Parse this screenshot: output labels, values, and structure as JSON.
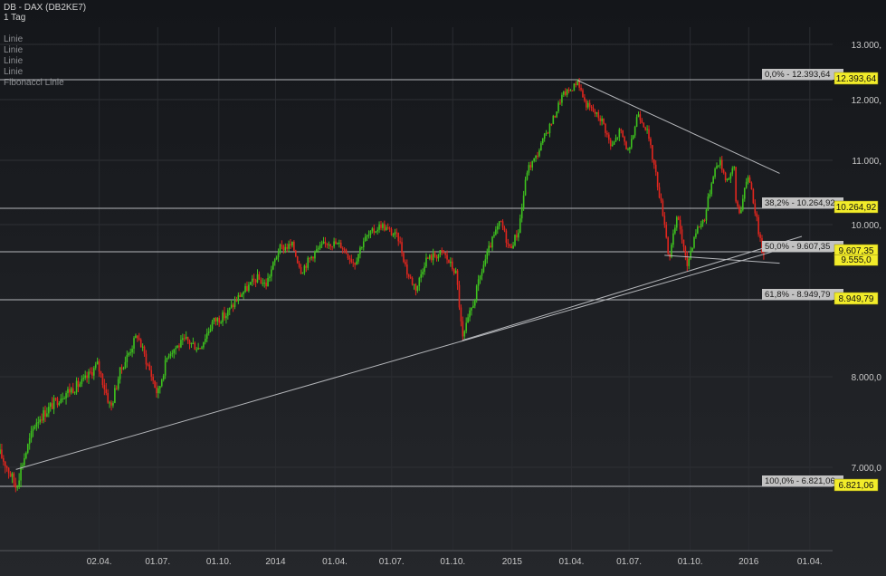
{
  "header": {
    "title": "DB - DAX (DB2KE7)",
    "period": "1 Tag"
  },
  "legend": [
    "Linie",
    "Linie",
    "Linie",
    "Linie",
    "Fibonacci Linie"
  ],
  "colors": {
    "up": "#3ec21e",
    "down": "#e0261e",
    "line": "#b4b6ba",
    "badge": "#f2ec2a",
    "fib_label_bg": "#c2c2c2"
  },
  "chart_data": {
    "type": "candlestick",
    "y_ticks": [
      {
        "value": 13000,
        "label": "13.000,"
      },
      {
        "value": 12000,
        "label": "12.000,"
      },
      {
        "value": 11000,
        "label": "11.000,"
      },
      {
        "value": 10000,
        "label": "10.000,"
      },
      {
        "value": 8000,
        "label": "8.000,0"
      },
      {
        "value": 7000,
        "label": "7.000,0"
      }
    ],
    "x_ticks": [
      {
        "t": 0.112,
        "label": "02.04."
      },
      {
        "t": 0.178,
        "label": "01.07."
      },
      {
        "t": 0.247,
        "label": "01.10."
      },
      {
        "t": 0.311,
        "label": "2014"
      },
      {
        "t": 0.378,
        "label": "01.04."
      },
      {
        "t": 0.442,
        "label": "01.07."
      },
      {
        "t": 0.511,
        "label": "01.10."
      },
      {
        "t": 0.578,
        "label": "2015"
      },
      {
        "t": 0.645,
        "label": "01.04."
      },
      {
        "t": 0.71,
        "label": "01.07."
      },
      {
        "t": 0.779,
        "label": "01.10."
      },
      {
        "t": 0.845,
        "label": "2016"
      },
      {
        "t": 0.914,
        "label": "01.04."
      }
    ],
    "price_path": [
      [
        0.0,
        7150
      ],
      [
        0.018,
        6820
      ],
      [
        0.04,
        7500
      ],
      [
        0.07,
        7800
      ],
      [
        0.095,
        7950
      ],
      [
        0.11,
        8150
      ],
      [
        0.125,
        7650
      ],
      [
        0.135,
        8050
      ],
      [
        0.155,
        8520
      ],
      [
        0.165,
        8200
      ],
      [
        0.178,
        7800
      ],
      [
        0.19,
        8300
      ],
      [
        0.21,
        8450
      ],
      [
        0.225,
        8350
      ],
      [
        0.24,
        8680
      ],
      [
        0.255,
        8760
      ],
      [
        0.27,
        9000
      ],
      [
        0.29,
        9250
      ],
      [
        0.3,
        9150
      ],
      [
        0.315,
        9650
      ],
      [
        0.33,
        9700
      ],
      [
        0.34,
        9350
      ],
      [
        0.355,
        9600
      ],
      [
        0.37,
        9750
      ],
      [
        0.385,
        9700
      ],
      [
        0.4,
        9450
      ],
      [
        0.41,
        9770
      ],
      [
        0.43,
        10000
      ],
      [
        0.45,
        9800
      ],
      [
        0.46,
        9300
      ],
      [
        0.47,
        9100
      ],
      [
        0.48,
        9500
      ],
      [
        0.5,
        9600
      ],
      [
        0.515,
        9300
      ],
      [
        0.522,
        8450
      ],
      [
        0.535,
        8950
      ],
      [
        0.545,
        9400
      ],
      [
        0.555,
        9750
      ],
      [
        0.565,
        10050
      ],
      [
        0.575,
        9650
      ],
      [
        0.585,
        9900
      ],
      [
        0.595,
        10850
      ],
      [
        0.605,
        11050
      ],
      [
        0.615,
        11400
      ],
      [
        0.625,
        11700
      ],
      [
        0.635,
        12100
      ],
      [
        0.645,
        12200
      ],
      [
        0.652,
        12380
      ],
      [
        0.66,
        11950
      ],
      [
        0.67,
        11800
      ],
      [
        0.68,
        11650
      ],
      [
        0.69,
        11200
      ],
      [
        0.7,
        11500
      ],
      [
        0.71,
        11100
      ],
      [
        0.72,
        11800
      ],
      [
        0.73,
        11500
      ],
      [
        0.74,
        10800
      ],
      [
        0.75,
        10050
      ],
      [
        0.755,
        9500
      ],
      [
        0.765,
        10150
      ],
      [
        0.775,
        9400
      ],
      [
        0.785,
        9900
      ],
      [
        0.795,
        10100
      ],
      [
        0.805,
        10800
      ],
      [
        0.812,
        11000
      ],
      [
        0.82,
        10700
      ],
      [
        0.83,
        10900
      ],
      [
        0.82,
        10800
      ],
      [
        0.835,
        10200
      ],
      [
        0.845,
        10800
      ],
      [
        0.852,
        10250
      ],
      [
        0.858,
        9750
      ],
      [
        0.862,
        9550
      ]
    ],
    "trendlines": [
      {
        "t1": 0.018,
        "v1": 6980,
        "t2": 0.905,
        "v2": 9730
      },
      {
        "t1": 0.522,
        "v1": 8450,
        "t2": 0.905,
        "v2": 9830
      },
      {
        "t1": 0.652,
        "v1": 12380,
        "t2": 0.88,
        "v2": 10800
      },
      {
        "t1": 0.75,
        "v1": 9560,
        "t2": 0.88,
        "v2": 9450
      }
    ],
    "fibonacci": [
      {
        "value": 12393.64,
        "label": "0,0% - 12.393,64",
        "badge": "12.393,64"
      },
      {
        "value": 10264.92,
        "label": "38,2% - 10.264,92",
        "badge": "10.264,92"
      },
      {
        "value": 9607.35,
        "label": "50,0% - 9.607,35",
        "badge": "9.607,35"
      },
      {
        "value": 8949.79,
        "label": "61,8% - 8.949,79",
        "badge": "8.949,79"
      },
      {
        "value": 6821.06,
        "label": "100,0% - 6.821,06",
        "badge": "6.821,06"
      }
    ],
    "current_price": {
      "value": 9555.0,
      "label": "9.555,0"
    }
  }
}
